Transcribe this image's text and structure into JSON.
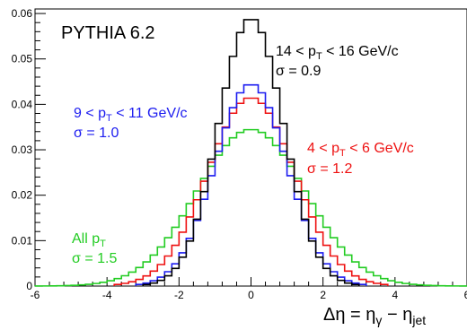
{
  "chart_data": {
    "type": "line",
    "title": "PYTHIA 6.2",
    "xlabel": {
      "base": "Δη = η",
      "sub1": "γ",
      "mid": " − η",
      "sub2": "jet"
    },
    "ylabel": "",
    "xlim": [
      -6,
      6
    ],
    "ylim": [
      0,
      0.061
    ],
    "xticks": [
      "-6",
      "-4",
      "-2",
      "0",
      "2",
      "4",
      "6"
    ],
    "xtick_values": [
      -6,
      -4,
      -2,
      0,
      2,
      4,
      6
    ],
    "yticks": [
      "0",
      "0.01",
      "0.02",
      "0.03",
      "0.04",
      "0.05",
      "0.06"
    ],
    "ytick_values": [
      0,
      0.01,
      0.02,
      0.03,
      0.04,
      0.05,
      0.06
    ],
    "grid": false,
    "bin_width": 0.2,
    "series": [
      {
        "key": "black",
        "color": "#000000",
        "sigma": 0.9,
        "peak": 0.059,
        "low_edge": -3.0,
        "high_edge": 3.0,
        "annotation": {
          "line1_pre": "14 < p",
          "line1_sub": "T",
          "line1_post": " < 16 GeV/c",
          "line2": "σ = 0.9"
        }
      },
      {
        "key": "blue",
        "color": "#1c1cf0",
        "sigma": 1.0,
        "peak": 0.0445,
        "low_edge": -3.2,
        "high_edge": 3.2,
        "annotation": {
          "line1_pre": "9 < p",
          "line1_sub": "T",
          "line1_post": " < 11 GeV/c",
          "line2": "σ = 1.0"
        }
      },
      {
        "key": "red",
        "color": "#ee1111",
        "sigma": 1.2,
        "peak": 0.0415,
        "low_edge": -3.8,
        "high_edge": 3.8,
        "annotation": {
          "line1_pre": "4 < p",
          "line1_sub": "T",
          "line1_post": " < 6 GeV/c",
          "line2": "σ = 1.2"
        }
      },
      {
        "key": "green",
        "color": "#22cc22",
        "sigma": 1.5,
        "peak": 0.0345,
        "low_edge": -6.0,
        "high_edge": 6.0,
        "annotation": {
          "line1_pre": "All p",
          "line1_sub": "T",
          "line1_post": "",
          "line2": "σ = 1.5"
        }
      }
    ]
  }
}
